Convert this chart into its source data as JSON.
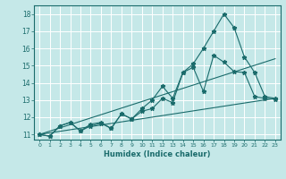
{
  "title": "",
  "xlabel": "Humidex (Indice chaleur)",
  "bg_color": "#c5e8e8",
  "grid_color": "#ffffff",
  "line_color": "#1a6b6b",
  "xlim": [
    -0.5,
    23.5
  ],
  "ylim": [
    10.7,
    18.5
  ],
  "xticks": [
    0,
    1,
    2,
    3,
    4,
    5,
    6,
    7,
    8,
    9,
    10,
    11,
    12,
    13,
    14,
    15,
    16,
    17,
    18,
    19,
    20,
    21,
    22,
    23
  ],
  "yticks": [
    11,
    12,
    13,
    14,
    15,
    16,
    17,
    18
  ],
  "lines": [
    {
      "x": [
        0,
        23
      ],
      "y": [
        11.0,
        13.1
      ],
      "has_markers": false
    },
    {
      "x": [
        0,
        23
      ],
      "y": [
        11.0,
        15.4
      ],
      "has_markers": false
    },
    {
      "x": [
        0,
        1,
        2,
        3,
        4,
        5,
        6,
        7,
        8,
        9,
        10,
        11,
        12,
        13,
        14,
        15,
        16,
        17,
        18,
        19,
        20,
        21,
        22,
        23
      ],
      "y": [
        11.0,
        10.9,
        11.5,
        11.7,
        11.2,
        11.6,
        11.7,
        11.35,
        12.2,
        11.9,
        12.35,
        12.5,
        13.1,
        12.85,
        14.6,
        14.9,
        13.5,
        15.6,
        15.2,
        14.65,
        14.6,
        13.2,
        13.1,
        13.05
      ],
      "has_markers": true
    },
    {
      "x": [
        0,
        1,
        2,
        3,
        4,
        5,
        6,
        7,
        8,
        9,
        10,
        11,
        12,
        13,
        14,
        15,
        16,
        17,
        18,
        19,
        20,
        21,
        22,
        23
      ],
      "y": [
        11.0,
        10.9,
        11.5,
        11.7,
        11.2,
        11.5,
        11.65,
        11.35,
        12.2,
        11.9,
        12.5,
        13.0,
        13.8,
        13.1,
        14.6,
        15.1,
        16.0,
        17.0,
        18.0,
        17.2,
        15.5,
        14.6,
        13.2,
        13.1
      ],
      "has_markers": true
    }
  ]
}
